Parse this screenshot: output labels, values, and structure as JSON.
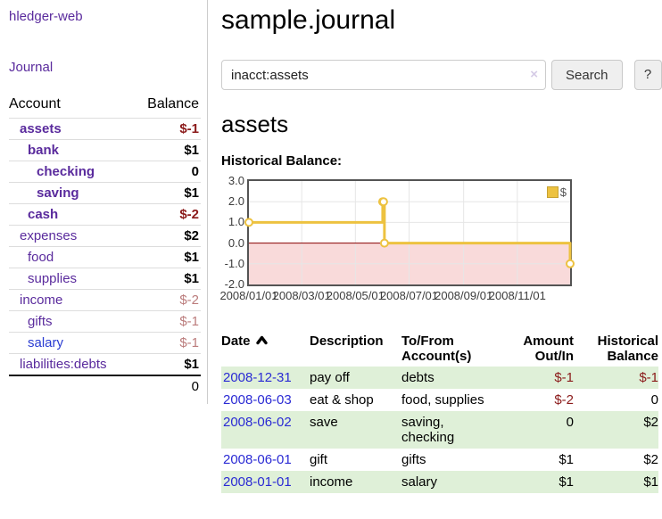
{
  "app": {
    "brand": "hledger-web",
    "nav_journal": "Journal"
  },
  "sidebar": {
    "accounts": {
      "headers": {
        "account": "Account",
        "balance": "Balance"
      },
      "rows": [
        {
          "name": "assets",
          "balance": "$-1"
        },
        {
          "name": "bank",
          "balance": "$1"
        },
        {
          "name": "checking",
          "balance": "0"
        },
        {
          "name": "saving",
          "balance": "$1"
        },
        {
          "name": "cash",
          "balance": "$-2"
        },
        {
          "name": "expenses",
          "balance": "$2"
        },
        {
          "name": "food",
          "balance": "$1"
        },
        {
          "name": "supplies",
          "balance": "$1"
        },
        {
          "name": "income",
          "balance": "$-2"
        },
        {
          "name": "gifts",
          "balance": "$-1"
        },
        {
          "name": "salary",
          "balance": "$-1"
        },
        {
          "name": "liabilities:debts",
          "balance": "$1"
        }
      ],
      "total": "0"
    }
  },
  "header": {
    "title": "sample.journal"
  },
  "search": {
    "value": "inacct:assets",
    "clear_icon": "×",
    "button_label": "Search",
    "help_label": "?"
  },
  "account_page": {
    "title": "assets",
    "chart_caption": "Historical Balance:"
  },
  "chart_data": {
    "type": "line",
    "title": "Historical Balance",
    "legend": "$",
    "legend_position": "top-right",
    "grid": true,
    "ylim": [
      -2,
      3
    ],
    "yticks": [
      "3.0",
      "2.0",
      "1.0",
      "0.0",
      "-1.0",
      "-2.0"
    ],
    "ytick_values": [
      3,
      2,
      1,
      0,
      -1,
      -2
    ],
    "xlim_days": [
      0,
      365
    ],
    "xticks": [
      {
        "label": "2008/01/01",
        "day": 0
      },
      {
        "label": "2008/03/01",
        "day": 60
      },
      {
        "label": "2008/05/01",
        "day": 121
      },
      {
        "label": "2008/07/01",
        "day": 182
      },
      {
        "label": "2008/09/01",
        "day": 244
      },
      {
        "label": "2008/11/01",
        "day": 305
      }
    ],
    "series": [
      {
        "name": "$",
        "color": "#edc240",
        "step": true,
        "points": [
          {
            "date": "2008/01/01",
            "day": 0,
            "value": 1
          },
          {
            "date": "2008/06/01",
            "day": 152,
            "value": 2
          },
          {
            "date": "2008/06/02",
            "day": 153,
            "value": 2
          },
          {
            "date": "2008/06/03",
            "day": 154,
            "value": 0
          },
          {
            "date": "2008/12/31",
            "day": 365,
            "value": -1
          }
        ]
      }
    ],
    "negative_region_fill": "#f9dada",
    "zero_line_color": "#8b0000",
    "grid_color": "#e6e6e6"
  },
  "register": {
    "headers": {
      "date": "Date",
      "description": "Description",
      "accounts": "To/From Account(s)",
      "amount": "Amount Out/In",
      "balance": "Historical Balance"
    },
    "rows": [
      {
        "date": "2008-12-31",
        "description": "pay off",
        "accounts": "debts",
        "amount": "$-1",
        "balance": "$-1"
      },
      {
        "date": "2008-06-03",
        "description": "eat & shop",
        "accounts": "food, supplies",
        "amount": "$-2",
        "balance": "0"
      },
      {
        "date": "2008-06-02",
        "description": "save",
        "accounts": "saving, checking",
        "amount": "0",
        "balance": "$2"
      },
      {
        "date": "2008-06-01",
        "description": "gift",
        "accounts": "gifts",
        "amount": "$1",
        "balance": "$2"
      },
      {
        "date": "2008-01-01",
        "description": "income",
        "accounts": "salary",
        "amount": "$1",
        "balance": "$1"
      }
    ]
  }
}
